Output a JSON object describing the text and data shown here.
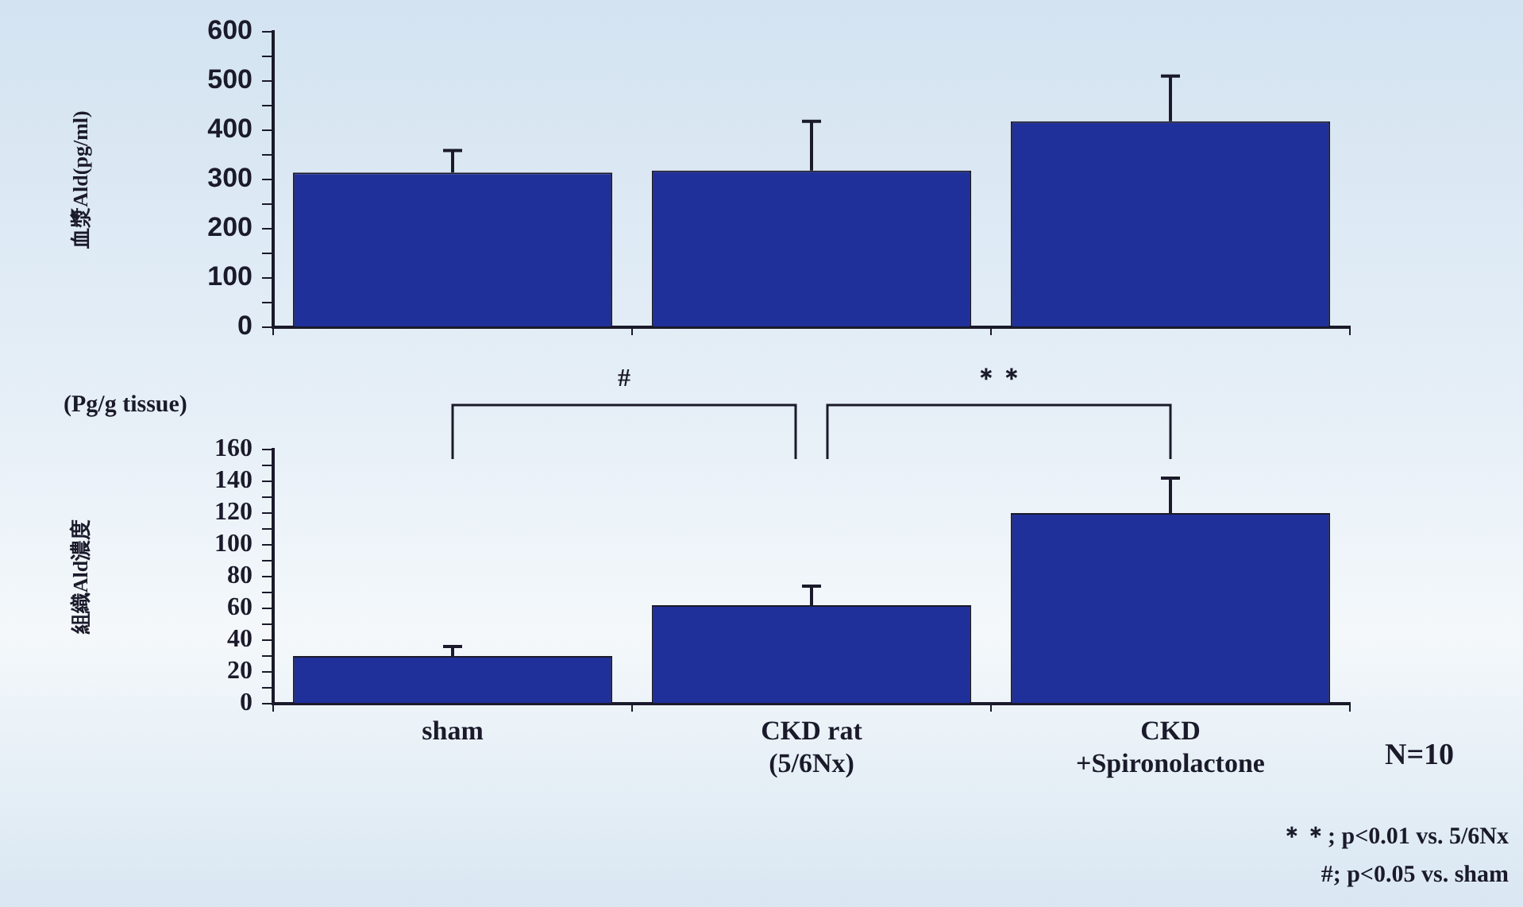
{
  "chart_data": [
    {
      "type": "bar",
      "ylabel": "血漿Ald(pg/ml)",
      "categories": [
        null,
        null,
        null
      ],
      "values": [
        314,
        318,
        418
      ],
      "color": "#20309a",
      "errors": [
        [
          314,
          359
        ],
        [
          318,
          418
        ],
        [
          418,
          510
        ]
      ],
      "ylim": [
        0,
        600
      ],
      "yticks": [
        0,
        {
          "value": 50,
          "label": null
        },
        100,
        {
          "value": 150,
          "label": null
        },
        200,
        {
          "value": 250,
          "label": null
        },
        300,
        {
          "value": 350,
          "label": null
        },
        400,
        {
          "value": 450,
          "label": null
        },
        500,
        {
          "value": 550,
          "label": null
        },
        600
      ],
      "tick_labels": "y"
    },
    {
      "type": "bar",
      "ylabel": "組織Ald濃度",
      "categories": [
        "sham",
        "CKD rat\n(5/6Nx)",
        "CKD\n+Spironolactone"
      ],
      "values": [
        30,
        62,
        120
      ],
      "color": "#20309a",
      "errors": [
        [
          30,
          36
        ],
        [
          62,
          74
        ],
        [
          120,
          142
        ]
      ],
      "ylim": [
        0,
        160
      ],
      "yticks": [
        0,
        {
          "value": 10,
          "label": null
        },
        20,
        {
          "value": 30,
          "label": null
        },
        40,
        {
          "value": 50,
          "label": null
        },
        60,
        {
          "value": 70,
          "label": null
        },
        80,
        {
          "value": 90,
          "label": null
        },
        100,
        {
          "value": 110,
          "label": null
        },
        120,
        {
          "value": 130,
          "label": null
        },
        140,
        {
          "value": 150,
          "label": null
        },
        160
      ],
      "annotations": [
        "#",
        "＊＊",
        "(Pg/g tissue)",
        "N=10",
        "＊＊; p<0.01 vs. 5/6Nx",
        "#; p<0.05 vs. sham"
      ]
    }
  ]
}
